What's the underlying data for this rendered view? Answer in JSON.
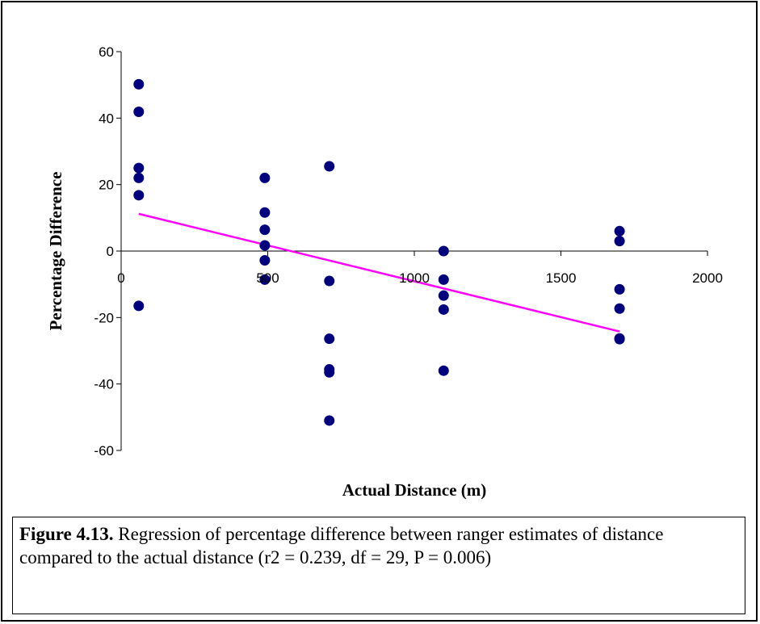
{
  "colors": {
    "points": "#00007f",
    "trendline": "#ff00ff",
    "axes": "#000000"
  },
  "chart_data": {
    "type": "scatter",
    "title": "",
    "xlabel": "Actual Distance (m)",
    "ylabel": "Percentage Difference",
    "xlim": [
      0,
      2000
    ],
    "ylim": [
      -60,
      60
    ],
    "x_ticks": [
      0,
      500,
      1000,
      1500,
      2000
    ],
    "y_ticks": [
      60,
      40,
      20,
      0,
      -20,
      -40,
      -60
    ],
    "grid": false,
    "legend": "none",
    "series": [
      {
        "x": [
          60,
          60,
          60,
          60,
          60,
          60,
          490,
          490,
          490,
          490,
          490,
          490,
          710,
          710,
          710,
          710,
          710,
          710,
          1100,
          1100,
          1100,
          1100,
          1100,
          1700,
          1700,
          1700,
          1700,
          1700,
          1700
        ],
        "y": [
          50.2,
          41.9,
          25,
          22,
          16.8,
          -16.5,
          22,
          11.6,
          6.4,
          1.7,
          -2.8,
          -8.6,
          25.5,
          -9,
          -26.4,
          -35.6,
          -36.5,
          -51,
          0,
          -8.6,
          -13.4,
          -17.6,
          -36,
          6,
          3,
          -11.5,
          -17.3,
          -26.3,
          -26.5
        ]
      }
    ],
    "trendline": {
      "x": [
        60,
        1700
      ],
      "y": [
        11.2,
        -24.2
      ]
    }
  },
  "caption": {
    "label": "Figure 4.13.",
    "text": " Regression of percentage difference between ranger estimates of distance compared to the actual distance (r2 = 0.239, df = 29, P = 0.006)"
  }
}
